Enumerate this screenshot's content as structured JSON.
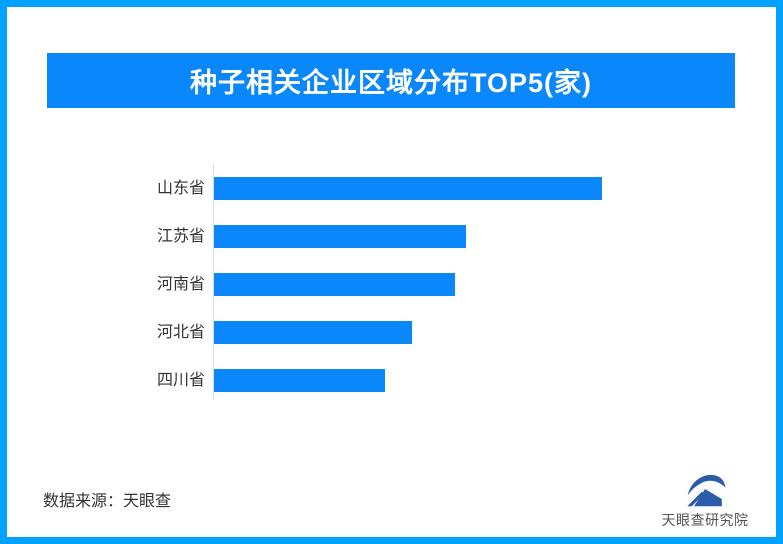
{
  "frame": {
    "border_color": "#00A2FF"
  },
  "header": {
    "title": "种子相关企业区域分布TOP5(家)",
    "background_color": "#0A87FA",
    "text_color": "#FFFFFF"
  },
  "chart_data": {
    "type": "bar",
    "orientation": "horizontal",
    "title": "种子相关企业区域分布TOP5(家)",
    "categories": [
      "山东省",
      "江苏省",
      "河南省",
      "河北省",
      "四川省"
    ],
    "values": [
      100,
      65,
      62,
      51,
      44
    ],
    "value_unit": "relative-percent-of-longest-bar (no numeric data labels shown in image)",
    "xlabel": "",
    "ylabel": "",
    "bar_color": "#0A87FA",
    "axis_line_color": "#DBDBDB",
    "grid": false,
    "legend": false
  },
  "footer": {
    "source": "数据来源：天眼查"
  },
  "brand": {
    "name": "天眼查研究院",
    "logo_icon": "tianyancha-eye-logo",
    "logo_color": "#2B5CA8",
    "text_color": "#52525C"
  }
}
